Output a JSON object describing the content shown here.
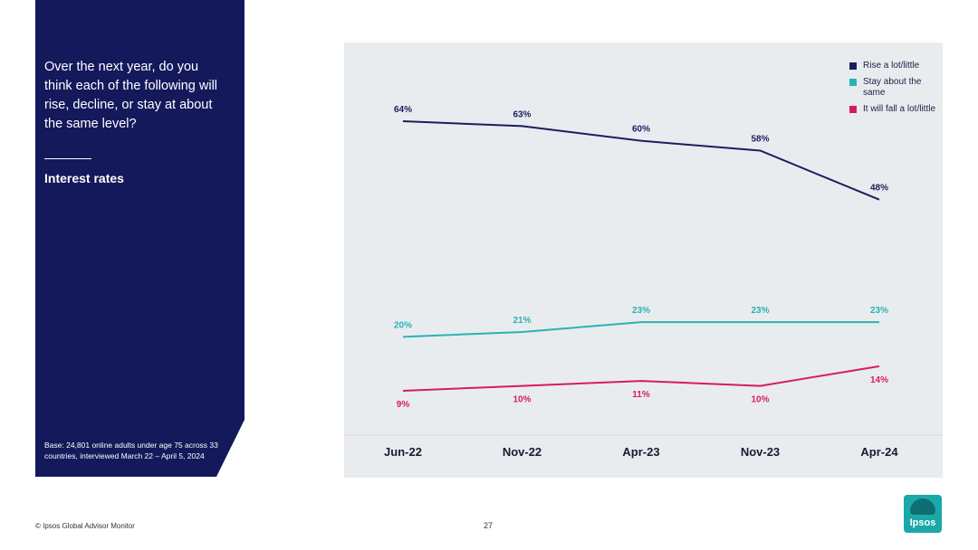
{
  "panel": {
    "question": "Over the next year, do you think each of the following will rise, decline, or stay at about the same level?",
    "topic": "Interest rates",
    "base_note": "Base: 24,801 online adults under age 75 across 33 countries, interviewed March 22 – April 5, 2024"
  },
  "footer": {
    "source": "© Ipsos Global Advisor Monitor",
    "page_number": "27"
  },
  "logo": {
    "text": "Ipsos"
  },
  "colors": {
    "panel_bg": "#13195a",
    "chart_bg": "#e9ecef",
    "rise": "#1a1f5c",
    "same": "#2bb3b3",
    "fall": "#d81b60"
  },
  "chart_data": {
    "type": "line",
    "categories": [
      "Jun-22",
      "Nov-22",
      "Apr-23",
      "Nov-23",
      "Apr-24"
    ],
    "ylim": [
      0,
      70
    ],
    "legend_position": "top-right",
    "series": [
      {
        "name": "Rise a lot/little",
        "values": [
          64,
          63,
          60,
          58,
          48
        ],
        "labels": [
          "64%",
          "63%",
          "60%",
          "58%",
          "48%"
        ],
        "color": "#1a1f5c"
      },
      {
        "name": "Stay about the same",
        "values": [
          20,
          21,
          23,
          23,
          23
        ],
        "labels": [
          "20%",
          "21%",
          "23%",
          "23%",
          "23%"
        ],
        "color": "#2bb3b3"
      },
      {
        "name": "It will fall a lot/little",
        "values": [
          9,
          10,
          11,
          10,
          14
        ],
        "labels": [
          "9%",
          "10%",
          "11%",
          "10%",
          "14%"
        ],
        "color": "#d81b60"
      }
    ]
  }
}
